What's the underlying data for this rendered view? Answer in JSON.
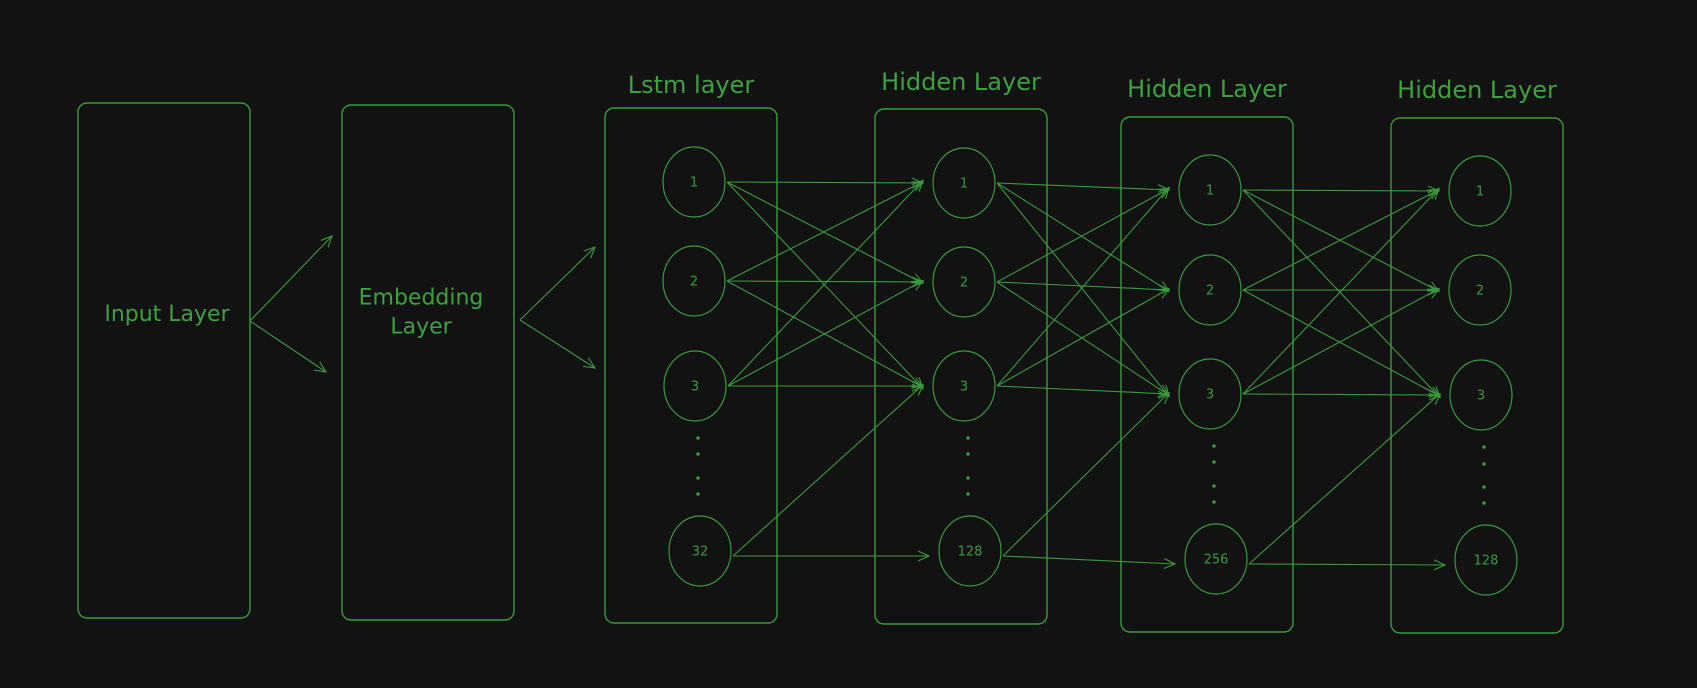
{
  "colors": {
    "background": "#121212",
    "stroke": "#3a9a3d",
    "text": "#3da041"
  },
  "blocks": [
    {
      "id": "input",
      "label_lines": [
        "Input Layer"
      ],
      "title": "",
      "nodes": []
    },
    {
      "id": "embedding",
      "label_lines": [
        "Embedding",
        "Layer"
      ],
      "title": "",
      "nodes": []
    },
    {
      "id": "lstm",
      "label_lines": [],
      "title": "Lstm layer",
      "nodes": [
        "1",
        "2",
        "3",
        "32"
      ]
    },
    {
      "id": "hidden1",
      "label_lines": [],
      "title": "Hidden Layer",
      "nodes": [
        "1",
        "2",
        "3",
        "128"
      ]
    },
    {
      "id": "hidden2",
      "label_lines": [],
      "title": "Hidden Layer",
      "nodes": [
        "1",
        "2",
        "3",
        "256"
      ]
    },
    {
      "id": "hidden3",
      "label_lines": [],
      "title": "Hidden Layer",
      "nodes": [
        "1",
        "2",
        "3",
        "128"
      ]
    }
  ],
  "connections": [
    {
      "from": "input",
      "to": "embedding",
      "type": "fan-out-arrows"
    },
    {
      "from": "embedding",
      "to": "lstm",
      "type": "fan-out-arrows"
    },
    {
      "from": "lstm",
      "to": "hidden1",
      "type": "node-to-node-arrows"
    },
    {
      "from": "hidden1",
      "to": "hidden2",
      "type": "node-to-node-arrows"
    },
    {
      "from": "hidden2",
      "to": "hidden3",
      "type": "node-to-node-arrows"
    }
  ],
  "ellipsis_marker": "vertical-dots"
}
